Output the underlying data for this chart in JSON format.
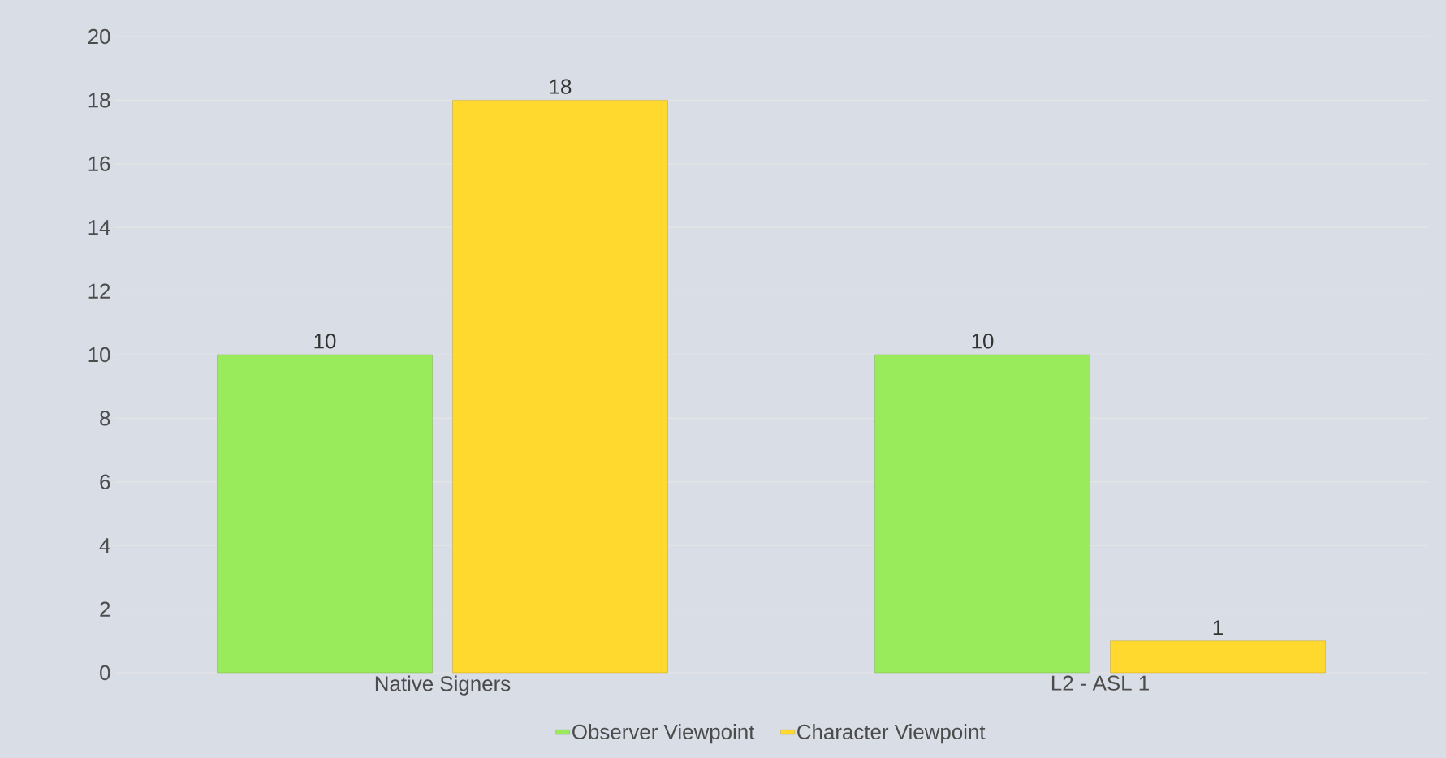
{
  "chart_data": {
    "type": "bar",
    "categories": [
      "Native Signers",
      "L2 - ASL 1"
    ],
    "series": [
      {
        "name": "Observer Viewpoint",
        "color": "#9aeb5c",
        "values": [
          10,
          10
        ]
      },
      {
        "name": "Character Viewpoint",
        "color": "#ffd92e",
        "values": [
          18,
          1
        ]
      }
    ],
    "ylim": [
      0,
      20
    ],
    "yticks": [
      0,
      2,
      4,
      6,
      8,
      10,
      12,
      14,
      16,
      18,
      20
    ],
    "grid": "y",
    "data_labels": true,
    "legend": "bottom"
  }
}
